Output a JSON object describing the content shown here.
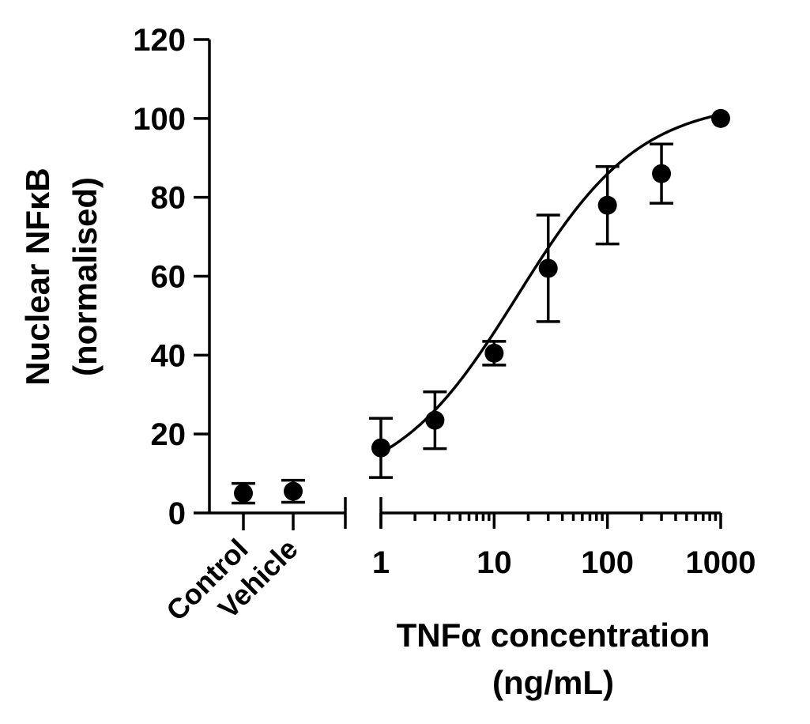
{
  "chart_data": {
    "type": "scatter",
    "ylabel_line1": "Nuclear NFκB",
    "ylabel_line2": "(normalised)",
    "xlabel_line1": "TNFα concentration",
    "xlabel_line2": "(ng/mL)",
    "ylim": [
      0,
      120
    ],
    "yticks": [
      0,
      20,
      40,
      60,
      80,
      100,
      120
    ],
    "x_scale": "log",
    "xlim": [
      1,
      1000
    ],
    "xticks": [
      1,
      10,
      100,
      1000
    ],
    "xtick_labels": [
      "1",
      "10",
      "100",
      "1000"
    ],
    "categories": [
      {
        "label": "Control",
        "y": 5,
        "err": 2.5
      },
      {
        "label": "Vehicle",
        "y": 5.5,
        "err": 2.8
      }
    ],
    "points": [
      {
        "x": 1,
        "y": 16.5,
        "err": 7.5
      },
      {
        "x": 3,
        "y": 23.5,
        "err": 7.2
      },
      {
        "x": 10,
        "y": 40.5,
        "err": 3.0
      },
      {
        "x": 30,
        "y": 62,
        "err": 13.5
      },
      {
        "x": 100,
        "y": 78,
        "err": 9.8
      },
      {
        "x": 300,
        "y": 86,
        "err": 7.5
      },
      {
        "x": 1000,
        "y": 100,
        "err": 0
      }
    ],
    "fit": {
      "bottom": 5.5,
      "top": 104.5,
      "ec50": 16,
      "hill": 0.8
    },
    "colors": {
      "marker": "#000000",
      "line": "#000000"
    }
  }
}
